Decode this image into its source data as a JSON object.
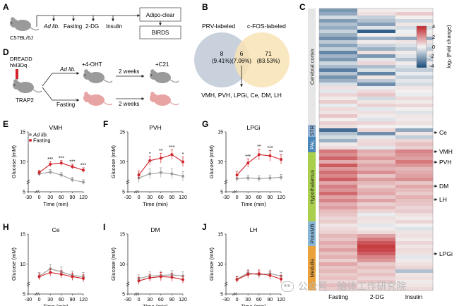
{
  "panels": {
    "A": {
      "letter": "A",
      "mouse_label": "C57BL/6J",
      "steps": [
        "Ad lib.",
        "Fasting",
        "2-DG",
        "Insulin"
      ],
      "boxes": [
        "Adipo-clear",
        "BIRDS"
      ]
    },
    "B": {
      "letter": "B",
      "left_label": "PRV-labeled",
      "right_label": "c-FOS-labeled",
      "left_count": "8",
      "left_pct": "(9.41%)",
      "mid_count": "6",
      "mid_pct": "(7.06%)",
      "right_count": "71",
      "right_pct": "(83.53%)",
      "overlap_regions": "VMH, PVH, LPGi, Ce, DM, LH",
      "colors": {
        "left": "#c9d1dd",
        "right": "#f8e3b4"
      }
    },
    "D": {
      "letter": "D",
      "virus": [
        "DREADD",
        "hM3Dq"
      ],
      "mouse_label": "TRAP2",
      "arm_top": "Ad lib.",
      "arm_bottom": "Fasting",
      "oht": "+4-OHT",
      "wait1": "2 weeks",
      "wait2": "2 weeks",
      "c21": "+C21"
    },
    "C": {
      "letter": "C",
      "columns": [
        "Fasting",
        "2-DG",
        "Insulin"
      ],
      "regions": [
        "Cerebral cortex",
        "STR",
        "PAL",
        "Hypothalamus",
        "PonsMB",
        "Medulla"
      ],
      "region_colors": [
        "#e6e6e6",
        "#8fb2d6",
        "#4a86b8",
        "#a9cf4c",
        "#86b7d8",
        "#eaa13a"
      ],
      "labels": [
        "Ce",
        "VMH",
        "PVH",
        "DM",
        "LH",
        "LPGi"
      ],
      "legend_title": "log₂ (Fold change)",
      "legend_ticks": [
        "4",
        "2",
        "0",
        "-2",
        "-4"
      ],
      "colors": {
        "pos": "#c0272d",
        "neg": "#174a7c",
        "mid": "#f4f4f4"
      },
      "values": [
        [
          -2.2,
          0.2,
          0.1
        ],
        [
          -1.8,
          0.4,
          0.8
        ],
        [
          -0.6,
          -0.9,
          0.1
        ],
        [
          -2.1,
          -1.2,
          -0.7
        ],
        [
          -1.2,
          -2.0,
          0.3
        ],
        [
          -1.7,
          -0.4,
          -0.6
        ],
        [
          -0.8,
          -3.5,
          -0.1
        ],
        [
          -1.6,
          0.1,
          0.2
        ],
        [
          -2.4,
          -1.5,
          -1.8
        ],
        [
          -1.0,
          0.2,
          0.3
        ],
        [
          -1.9,
          -0.8,
          -0.5
        ],
        [
          -0.9,
          -1.6,
          -1.0
        ],
        [
          -2.6,
          0.4,
          0.2
        ],
        [
          -1.5,
          -2.2,
          -0.4
        ],
        [
          -2.2,
          -0.3,
          -1.1
        ],
        [
          -0.7,
          0.6,
          0.2
        ],
        [
          -1.4,
          -1.3,
          -0.5
        ],
        [
          -2.8,
          -0.5,
          -0.9
        ],
        [
          -1.1,
          -2.6,
          -0.2
        ],
        [
          -2.3,
          0.3,
          -0.8
        ],
        [
          -1.6,
          -1.0,
          -0.3
        ],
        [
          -0.5,
          -2.4,
          -0.6
        ],
        [
          0.4,
          -0.2,
          0.3
        ],
        [
          -0.3,
          0.5,
          0.1
        ],
        [
          0.6,
          0.9,
          -0.2
        ],
        [
          0.2,
          -0.6,
          0.5
        ],
        [
          0.8,
          0.3,
          0.2
        ],
        [
          -0.2,
          0.7,
          0.6
        ],
        [
          0.5,
          -0.3,
          0.1
        ],
        [
          0.3,
          0.4,
          -0.4
        ],
        [
          0.9,
          0.2,
          0.3
        ],
        [
          0.1,
          -0.4,
          0.2
        ],
        [
          0.7,
          0.6,
          0.4
        ],
        [
          0.4,
          0.1,
          -0.1
        ],
        [
          -3.2,
          0.6,
          -1.8
        ],
        [
          -1.2,
          -2.4,
          0.3
        ],
        [
          -0.6,
          -0.3,
          -0.9
        ],
        [
          -1.6,
          0.5,
          0.6
        ],
        [
          0.2,
          0.6,
          1.0
        ],
        [
          0.5,
          -0.3,
          0.7
        ],
        [
          2.4,
          1.4,
          2.2
        ],
        [
          2.0,
          1.2,
          1.9
        ],
        [
          2.8,
          1.8,
          1.6
        ],
        [
          1.4,
          1.1,
          2.4
        ],
        [
          3.0,
          1.6,
          1.8
        ],
        [
          1.8,
          1.3,
          1.2
        ],
        [
          2.6,
          2.0,
          1.4
        ],
        [
          2.1,
          0.9,
          1.6
        ],
        [
          2.9,
          1.7,
          2.0
        ],
        [
          1.5,
          1.2,
          0.9
        ],
        [
          2.3,
          0.8,
          1.5
        ],
        [
          1.9,
          1.3,
          1.1
        ],
        [
          2.7,
          1.5,
          0.8
        ],
        [
          1.6,
          0.9,
          1.3
        ],
        [
          2.2,
          1.6,
          1.0
        ],
        [
          1.3,
          0.7,
          0.9
        ],
        [
          1.7,
          1.1,
          0.6
        ],
        [
          1.1,
          0.6,
          0.8
        ],
        [
          0.9,
          -0.2,
          0.4
        ],
        [
          0.6,
          0.4,
          0.2
        ],
        [
          0.8,
          0.3,
          0.6
        ],
        [
          0.3,
          -0.3,
          0.1
        ],
        [
          0.5,
          0.2,
          -0.4
        ],
        [
          0.7,
          0.5,
          0.3
        ],
        [
          1.2,
          1.6,
          0.4
        ],
        [
          0.9,
          2.4,
          0.2
        ],
        [
          1.4,
          3.1,
          0.6
        ],
        [
          1.1,
          3.6,
          0.3
        ],
        [
          1.6,
          3.4,
          0.5
        ],
        [
          1.0,
          2.9,
          0.4
        ],
        [
          1.3,
          2.2,
          -0.3
        ],
        [
          0.7,
          1.8,
          0.2
        ],
        [
          1.5,
          0.8,
          0.4
        ],
        [
          0.9,
          1.1,
          0.6
        ],
        [
          1.2,
          0.7,
          -1.2
        ],
        [
          0.8,
          1.0,
          0.3
        ],
        [
          1.0,
          0.6,
          0.4
        ],
        [
          0.6,
          0.9,
          0.2
        ],
        [
          1.1,
          0.4,
          0.3
        ],
        [
          0.8,
          0.6,
          0.5
        ]
      ]
    }
  },
  "line_charts": {
    "x_ticks": [
      "-30",
      "0",
      "30",
      "60",
      "90",
      "120"
    ],
    "xlabel": "Time (min)",
    "ylabel": "Glucose (mM)",
    "y_ticks": [
      "5",
      "10",
      "15"
    ],
    "legend_adlib": "Ad lib.",
    "legend_fasting": "Fasting",
    "colors": {
      "adlib": "#9a9a9a",
      "fasting": "#d0232a"
    }
  },
  "chart_data": [
    {
      "type": "line",
      "panel": "E",
      "title": "VMH",
      "x": [
        0,
        30,
        60,
        90,
        120
      ],
      "ylim": [
        5,
        15
      ],
      "xlabel": "Time (min)",
      "ylabel": "Glucose (mM)",
      "series": [
        {
          "name": "Ad lib.",
          "values": [
            8.0,
            8.3,
            7.8,
            7.0,
            6.6
          ],
          "err": [
            0.4,
            0.4,
            0.4,
            0.4,
            0.4
          ]
        },
        {
          "name": "Fasting",
          "values": [
            8.2,
            9.6,
            9.8,
            9.2,
            8.6
          ],
          "err": [
            0.4,
            0.4,
            0.4,
            0.4,
            0.4
          ]
        }
      ],
      "significance": [
        "",
        "***",
        "***",
        "***",
        "***"
      ]
    },
    {
      "type": "line",
      "panel": "F",
      "title": "PVH",
      "x": [
        0,
        30,
        60,
        90,
        120
      ],
      "ylim": [
        5,
        15
      ],
      "xlabel": "Time (min)",
      "ylabel": "Glucose (mM)",
      "series": [
        {
          "name": "Ad lib.",
          "values": [
            7.3,
            8.0,
            8.2,
            8.0,
            7.6
          ],
          "err": [
            0.8,
            0.8,
            0.8,
            0.8,
            0.8
          ]
        },
        {
          "name": "Fasting",
          "values": [
            7.8,
            10.2,
            10.6,
            11.2,
            10.0
          ],
          "err": [
            0.7,
            0.7,
            0.8,
            0.8,
            0.8
          ]
        }
      ],
      "significance": [
        "",
        "*",
        "**",
        "***",
        "*"
      ]
    },
    {
      "type": "line",
      "panel": "G",
      "title": "LPGi",
      "x": [
        0,
        30,
        60,
        90,
        120
      ],
      "ylim": [
        5,
        15
      ],
      "xlabel": "Time (min)",
      "ylabel": "Glucose (mM)",
      "series": [
        {
          "name": "Ad lib.",
          "values": [
            7.2,
            7.3,
            7.2,
            7.3,
            7.4
          ],
          "err": [
            0.5,
            0.5,
            0.5,
            0.5,
            0.5
          ]
        },
        {
          "name": "Fasting",
          "values": [
            7.8,
            9.8,
            11.2,
            11.0,
            10.4
          ],
          "err": [
            0.6,
            0.7,
            0.9,
            0.9,
            0.8
          ]
        }
      ],
      "significance": [
        "",
        "***",
        "**",
        "***",
        "**"
      ]
    },
    {
      "type": "line",
      "panel": "H",
      "title": "Ce",
      "x": [
        0,
        30,
        60,
        90,
        120
      ],
      "ylim": [
        5,
        15
      ],
      "xlabel": "Time (min)",
      "ylabel": "Glucose (mM)",
      "series": [
        {
          "name": "Ad lib.",
          "values": [
            8.0,
            9.2,
            8.7,
            8.1,
            7.9
          ],
          "err": [
            0.6,
            0.7,
            0.8,
            0.7,
            0.7
          ]
        },
        {
          "name": "Fasting",
          "values": [
            7.9,
            8.6,
            8.3,
            7.9,
            7.6
          ],
          "err": [
            0.5,
            0.6,
            0.6,
            0.6,
            0.6
          ]
        }
      ],
      "significance": [
        "",
        "",
        "",
        "",
        ""
      ]
    },
    {
      "type": "line",
      "panel": "I",
      "title": "DM",
      "x": [
        0,
        30,
        60,
        90,
        120
      ],
      "ylim": [
        5,
        15
      ],
      "xlabel": "Time (min)",
      "ylabel": "Glucose (mM)",
      "series": [
        {
          "name": "Ad lib.",
          "values": [
            7.6,
            8.0,
            8.1,
            8.2,
            8.0
          ],
          "err": [
            0.6,
            0.7,
            0.7,
            0.7,
            0.7
          ]
        },
        {
          "name": "Fasting",
          "values": [
            7.2,
            7.7,
            7.9,
            7.8,
            7.4
          ],
          "err": [
            0.6,
            0.6,
            0.7,
            0.7,
            0.6
          ]
        }
      ],
      "significance": [
        "",
        "",
        "",
        "",
        ""
      ]
    },
    {
      "type": "line",
      "panel": "J",
      "title": "LH",
      "x": [
        0,
        30,
        60,
        90,
        120
      ],
      "ylim": [
        5,
        15
      ],
      "xlabel": "Time (min)",
      "ylabel": "Glucose (mM)",
      "series": [
        {
          "name": "Ad lib.",
          "values": [
            7.5,
            8.5,
            8.2,
            8.4,
            8.0
          ],
          "err": [
            0.5,
            0.6,
            0.6,
            0.6,
            0.6
          ]
        },
        {
          "name": "Fasting",
          "values": [
            7.4,
            8.3,
            8.4,
            8.1,
            7.5
          ],
          "err": [
            0.5,
            0.6,
            0.6,
            0.6,
            0.6
          ]
        }
      ],
      "significance": [
        "",
        "",
        "",
        "",
        ""
      ]
    }
  ],
  "watermark": "公众号 · 脑体工作研究院"
}
